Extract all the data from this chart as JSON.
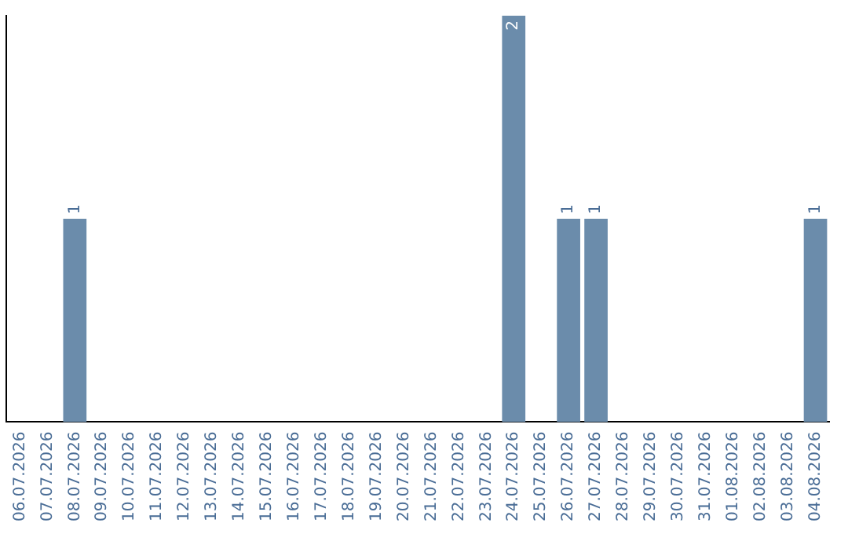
{
  "chart_data": {
    "type": "bar",
    "categories": [
      "06.07.2026",
      "07.07.2026",
      "08.07.2026",
      "09.07.2026",
      "10.07.2026",
      "11.07.2026",
      "12.07.2026",
      "13.07.2026",
      "14.07.2026",
      "15.07.2026",
      "16.07.2026",
      "17.07.2026",
      "18.07.2026",
      "19.07.2026",
      "20.07.2026",
      "21.07.2026",
      "22.07.2026",
      "23.07.2026",
      "24.07.2026",
      "25.07.2026",
      "26.07.2026",
      "27.07.2026",
      "28.07.2026",
      "29.07.2026",
      "30.07.2026",
      "31.07.2026",
      "01.08.2026",
      "02.08.2026",
      "03.08.2026",
      "04.08.2026"
    ],
    "values": [
      0,
      0,
      1,
      0,
      0,
      0,
      0,
      0,
      0,
      0,
      0,
      0,
      0,
      0,
      0,
      0,
      0,
      0,
      2,
      0,
      1,
      1,
      0,
      0,
      0,
      0,
      0,
      0,
      0,
      1
    ],
    "value_labels": [
      null,
      null,
      "1",
      null,
      null,
      null,
      null,
      null,
      null,
      null,
      null,
      null,
      null,
      null,
      null,
      null,
      null,
      null,
      "2",
      null,
      "1",
      "1",
      null,
      null,
      null,
      null,
      null,
      null,
      null,
      "1"
    ],
    "color": "#6b8cab",
    "ylim": [
      0,
      2
    ],
    "grid": false,
    "legend": false,
    "tick_labels": "x"
  }
}
